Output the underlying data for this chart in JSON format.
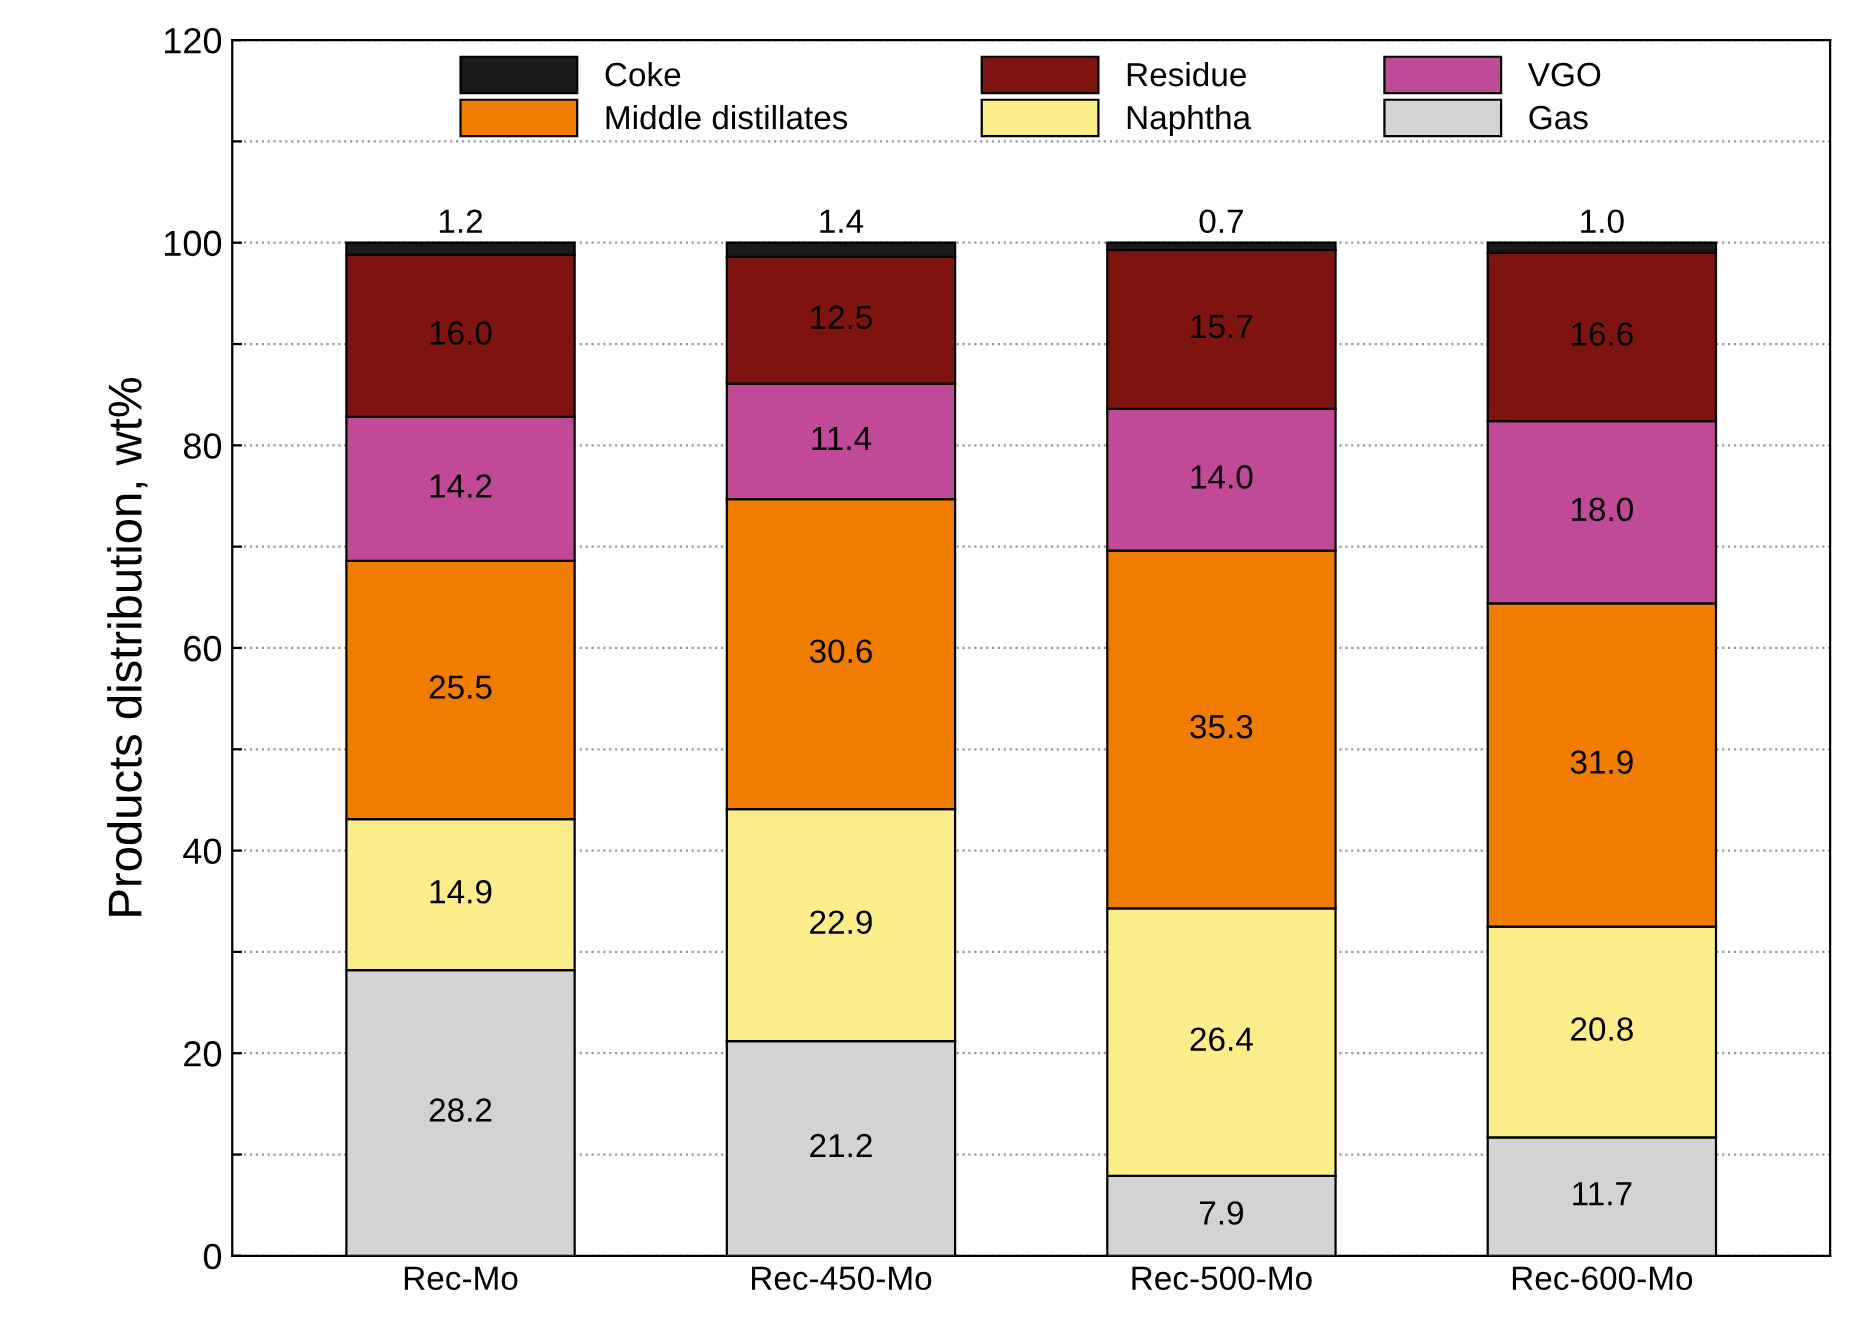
{
  "chart_data": {
    "type": "bar",
    "stacked": true,
    "ylabel": "Products distribution, wt%",
    "categories": [
      "Rec-Mo",
      "Rec-450-Mo",
      "Rec-500-Mo",
      "Rec-600-Mo"
    ],
    "series": [
      {
        "name": "Gas",
        "color": "#d3d3d3",
        "values": [
          28.2,
          21.2,
          7.9,
          11.7
        ],
        "value_labels": [
          "28.2",
          "21.2",
          "7.9",
          "11.7"
        ]
      },
      {
        "name": "Naphtha",
        "color": "#fbee8a",
        "values": [
          14.9,
          22.9,
          26.4,
          20.8
        ],
        "value_labels": [
          "14.9",
          "22.9",
          "26.4",
          "20.8"
        ]
      },
      {
        "name": "Middle distillates",
        "color": "#f07d00",
        "values": [
          25.5,
          30.6,
          35.3,
          31.9
        ],
        "value_labels": [
          "25.5",
          "30.6",
          "35.3",
          "31.9"
        ]
      },
      {
        "name": "VGO",
        "color": "#c04a98",
        "values": [
          14.2,
          11.4,
          14.0,
          18.0
        ],
        "value_labels": [
          "14.2",
          "11.4",
          "14.0",
          "18.0"
        ]
      },
      {
        "name": "Residue",
        "color": "#7f130f",
        "values": [
          16.0,
          12.5,
          15.7,
          16.6
        ],
        "value_labels": [
          "16.0",
          "12.5",
          "15.7",
          "16.6"
        ]
      },
      {
        "name": "Coke",
        "color": "#1a1a1a",
        "values": [
          1.2,
          1.4,
          0.7,
          1.0
        ],
        "value_labels": [
          "1.2",
          "1.4",
          "0.7",
          "1.0"
        ]
      }
    ],
    "ylim": [
      0,
      120
    ],
    "yticks": [
      0,
      {
        "value": 10,
        "label": null
      },
      20,
      {
        "value": 30,
        "label": null
      },
      40,
      {
        "value": 50,
        "label": null
      },
      60,
      {
        "value": 70,
        "label": null
      },
      80,
      {
        "value": 90,
        "label": null
      },
      100,
      {
        "value": 110,
        "label": null
      },
      120
    ],
    "grid": "y",
    "legend": "top"
  }
}
